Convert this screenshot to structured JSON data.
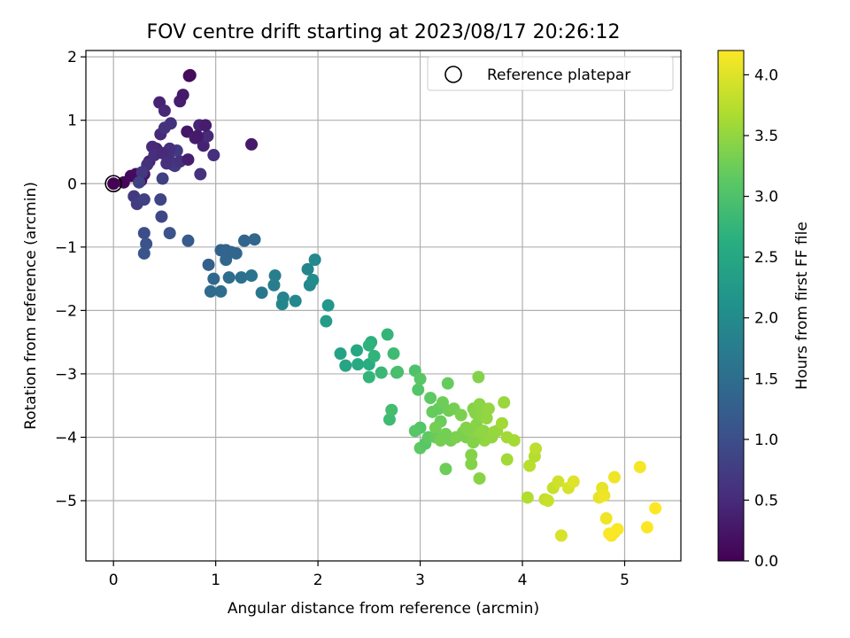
{
  "chart_data": {
    "type": "scatter",
    "title": "FOV centre drift starting at 2023/08/17 20:26:12",
    "xlabel": "Angular distance from reference (arcmin)",
    "ylabel": "Rotation from reference (arcmin)",
    "xlim": [
      -0.27,
      5.55
    ],
    "ylim": [
      -5.95,
      2.1
    ],
    "xticks": [
      "0",
      "1",
      "2",
      "3",
      "4",
      "5"
    ],
    "xtick_values": [
      0,
      1,
      2,
      3,
      4,
      5
    ],
    "yticks": [
      "2",
      "1",
      "0",
      "−1",
      "−2",
      "−3",
      "−4",
      "−5"
    ],
    "ytick_values": [
      2,
      1,
      0,
      -1,
      -2,
      -3,
      -4,
      -5
    ],
    "grid": true,
    "legend": {
      "position": "upper right",
      "entries": [
        "Reference platepar"
      ]
    },
    "reference_point": {
      "x": 0,
      "y": 0
    },
    "colorbar": {
      "label": "Hours from first FF file",
      "colormap": "viridis",
      "range": [
        0,
        4.2
      ],
      "ticks": [
        "0.0",
        "0.5",
        "1.0",
        "1.5",
        "2.0",
        "2.5",
        "3.0",
        "3.5",
        "4.0"
      ],
      "tick_values": [
        0,
        0.5,
        1.0,
        1.5,
        2.0,
        2.5,
        3.0,
        3.5,
        4.0
      ]
    },
    "points": [
      [
        0,
        0,
        0
      ],
      [
        0.1,
        0.02,
        0.05
      ],
      [
        0.17,
        0.12,
        0.1
      ],
      [
        0.22,
        0.15,
        0.12
      ],
      [
        0.27,
        0.05,
        0.2
      ],
      [
        0.3,
        0.15,
        0.25
      ],
      [
        0.35,
        0.35,
        0.4
      ],
      [
        0.42,
        0.55,
        0.45
      ],
      [
        0.46,
        0.78,
        0.5
      ],
      [
        0.5,
        0.88,
        0.6
      ],
      [
        0.54,
        0.4,
        0.55
      ],
      [
        0.58,
        0.3,
        0.65
      ],
      [
        0.62,
        0.52,
        0.7
      ],
      [
        0.65,
        1.3,
        0.35
      ],
      [
        0.68,
        1.4,
        0.3
      ],
      [
        0.72,
        0.82,
        0.25
      ],
      [
        0.74,
        1.7,
        0.15
      ],
      [
        0.75,
        1.71,
        0.12
      ],
      [
        0.8,
        0.72,
        0.35
      ],
      [
        0.84,
        0.92,
        0.45
      ],
      [
        0.88,
        0.6,
        0.4
      ],
      [
        0.92,
        0.75,
        0.5
      ],
      [
        0.98,
        0.45,
        0.55
      ],
      [
        1.35,
        0.62,
        0.3
      ],
      [
        0.45,
        1.28,
        0.42
      ],
      [
        0.5,
        1.15,
        0.48
      ],
      [
        0.56,
        0.95,
        0.6
      ],
      [
        0.6,
        0.28,
        0.7
      ],
      [
        0.38,
        0.58,
        0.5
      ],
      [
        0.4,
        0.45,
        0.55
      ],
      [
        0.33,
        0.3,
        0.6
      ],
      [
        0.28,
        0.18,
        0.65
      ],
      [
        0.65,
        0.35,
        0.6
      ],
      [
        0.55,
        0.55,
        0.55
      ],
      [
        0.48,
        0.48,
        0.5
      ],
      [
        0.52,
        0.32,
        0.58
      ],
      [
        0.85,
        0.15,
        0.6
      ],
      [
        0.73,
        0.38,
        0.35
      ],
      [
        0.82,
        0.75,
        0.3
      ],
      [
        0.9,
        0.92,
        0.32
      ],
      [
        0.2,
        -0.2,
        0.7
      ],
      [
        0.23,
        -0.32,
        0.75
      ],
      [
        0.3,
        -0.25,
        0.8
      ],
      [
        0.25,
        0.02,
        0.8
      ],
      [
        0.46,
        -0.25,
        0.85
      ],
      [
        0.47,
        -0.52,
        0.9
      ],
      [
        0.48,
        0.08,
        0.8
      ],
      [
        0.3,
        -0.78,
        1.0
      ],
      [
        0.32,
        -0.95,
        1.05
      ],
      [
        0.3,
        -1.1,
        1.1
      ],
      [
        0.55,
        -0.78,
        1.05
      ],
      [
        0.73,
        -0.9,
        1.2
      ],
      [
        1.05,
        -1.05,
        1.3
      ],
      [
        1.1,
        -1.05,
        1.35
      ],
      [
        1.1,
        -1.2,
        1.4
      ],
      [
        1.15,
        -1.08,
        1.35
      ],
      [
        1.2,
        -1.1,
        1.4
      ],
      [
        1.28,
        -0.9,
        1.35
      ],
      [
        1.38,
        -0.88,
        1.4
      ],
      [
        0.93,
        -1.28,
        1.3
      ],
      [
        0.98,
        -1.5,
        1.4
      ],
      [
        0.95,
        -1.7,
        1.45
      ],
      [
        1.05,
        -1.7,
        1.5
      ],
      [
        1.13,
        -1.48,
        1.5
      ],
      [
        1.25,
        -1.48,
        1.55
      ],
      [
        1.35,
        -1.45,
        1.6
      ],
      [
        1.45,
        -1.72,
        1.65
      ],
      [
        1.57,
        -1.6,
        1.75
      ],
      [
        1.58,
        -1.45,
        1.78
      ],
      [
        1.66,
        -1.8,
        1.85
      ],
      [
        1.65,
        -1.9,
        1.9
      ],
      [
        1.78,
        -1.85,
        1.95
      ],
      [
        1.9,
        -1.35,
        1.9
      ],
      [
        1.92,
        -1.6,
        1.95
      ],
      [
        1.95,
        -1.52,
        2.0
      ],
      [
        1.97,
        -1.2,
        1.95
      ],
      [
        2.1,
        -1.92,
        2.2
      ],
      [
        2.08,
        -2.17,
        2.3
      ],
      [
        2.22,
        -2.68,
        2.4
      ],
      [
        2.27,
        -2.87,
        2.45
      ],
      [
        2.38,
        -2.63,
        2.5
      ],
      [
        2.39,
        -2.85,
        2.55
      ],
      [
        2.5,
        -2.85,
        2.6
      ],
      [
        2.52,
        -2.5,
        2.65
      ],
      [
        2.5,
        -2.55,
        2.7
      ],
      [
        2.55,
        -2.72,
        2.72
      ],
      [
        2.5,
        -3.05,
        2.75
      ],
      [
        2.62,
        -2.98,
        2.8
      ],
      [
        2.68,
        -2.38,
        2.75
      ],
      [
        2.74,
        -2.68,
        2.85
      ],
      [
        2.77,
        -2.98,
        2.9
      ],
      [
        2.7,
        -3.72,
        2.85
      ],
      [
        2.72,
        -3.57,
        2.9
      ],
      [
        2.78,
        -2.97,
        2.95
      ],
      [
        2.95,
        -2.95,
        3.0
      ],
      [
        2.98,
        -3.25,
        3.05
      ],
      [
        3.0,
        -3.08,
        3.1
      ],
      [
        3.0,
        -3.85,
        3.05
      ],
      [
        2.95,
        -3.9,
        3.1
      ],
      [
        3.0,
        -4.17,
        3.15
      ],
      [
        3.05,
        -4.1,
        3.1
      ],
      [
        3.08,
        -4.0,
        3.15
      ],
      [
        3.1,
        -3.38,
        3.15
      ],
      [
        3.12,
        -3.6,
        3.2
      ],
      [
        3.15,
        -4.0,
        3.2
      ],
      [
        3.18,
        -3.55,
        3.2
      ],
      [
        3.2,
        -3.75,
        3.22
      ],
      [
        3.22,
        -3.45,
        3.25
      ],
      [
        3.24,
        -4.0,
        3.25
      ],
      [
        3.25,
        -4.5,
        3.25
      ],
      [
        3.27,
        -3.15,
        3.2
      ],
      [
        3.28,
        -3.58,
        3.25
      ],
      [
        3.3,
        -4.05,
        3.3
      ],
      [
        3.33,
        -3.55,
        3.3
      ],
      [
        3.35,
        -4.0,
        3.32
      ],
      [
        3.4,
        -3.65,
        3.35
      ],
      [
        3.42,
        -3.92,
        3.35
      ],
      [
        3.45,
        -4.0,
        3.35
      ],
      [
        3.48,
        -3.9,
        3.4
      ],
      [
        3.5,
        -4.28,
        3.4
      ],
      [
        3.5,
        -4.42,
        3.4
      ],
      [
        3.52,
        -3.55,
        3.4
      ],
      [
        3.54,
        -3.62,
        3.42
      ],
      [
        3.55,
        -3.8,
        3.42
      ],
      [
        3.57,
        -3.05,
        3.4
      ],
      [
        3.58,
        -3.48,
        3.45
      ],
      [
        3.58,
        -4.65,
        3.42
      ],
      [
        3.6,
        -3.65,
        3.45
      ],
      [
        3.62,
        -3.9,
        3.45
      ],
      [
        3.63,
        -4.05,
        3.5
      ],
      [
        3.65,
        -3.7,
        3.5
      ],
      [
        3.67,
        -3.55,
        3.5
      ],
      [
        3.7,
        -4.0,
        3.5
      ],
      [
        3.75,
        -3.9,
        3.55
      ],
      [
        3.8,
        -3.78,
        3.6
      ],
      [
        3.82,
        -3.45,
        3.55
      ],
      [
        3.85,
        -4.35,
        3.6
      ],
      [
        3.85,
        -4.0,
        3.6
      ],
      [
        3.92,
        -4.05,
        3.62
      ],
      [
        3.55,
        -4.0,
        3.45
      ],
      [
        3.35,
        -4.0,
        3.35
      ],
      [
        3.2,
        -4.05,
        3.3
      ],
      [
        3.15,
        -3.85,
        3.3
      ],
      [
        3.25,
        -3.95,
        3.3
      ],
      [
        3.45,
        -3.85,
        3.4
      ],
      [
        3.52,
        -4.08,
        3.4
      ],
      [
        3.6,
        -3.92,
        3.48
      ],
      [
        3.72,
        -3.92,
        3.52
      ],
      [
        4.05,
        -4.95,
        3.7
      ],
      [
        4.07,
        -4.45,
        3.75
      ],
      [
        4.12,
        -4.3,
        3.72
      ],
      [
        4.13,
        -4.18,
        3.78
      ],
      [
        4.22,
        -4.98,
        3.8
      ],
      [
        4.25,
        -5.0,
        3.85
      ],
      [
        4.3,
        -4.8,
        3.85
      ],
      [
        4.35,
        -4.7,
        3.9
      ],
      [
        4.38,
        -5.55,
        3.95
      ],
      [
        4.45,
        -4.8,
        3.95
      ],
      [
        4.5,
        -4.7,
        4.0
      ],
      [
        4.75,
        -4.95,
        4.05
      ],
      [
        4.78,
        -4.8,
        4.05
      ],
      [
        4.8,
        -4.92,
        4.1
      ],
      [
        4.82,
        -5.28,
        4.1
      ],
      [
        4.87,
        -5.55,
        4.15
      ],
      [
        4.9,
        -5.5,
        4.15
      ],
      [
        4.9,
        -4.63,
        4.1
      ],
      [
        4.93,
        -5.45,
        4.18
      ],
      [
        5.15,
        -4.47,
        4.15
      ],
      [
        5.22,
        -5.42,
        4.2
      ],
      [
        5.3,
        -5.12,
        4.2
      ],
      [
        4.85,
        -5.52,
        4.18
      ]
    ]
  }
}
